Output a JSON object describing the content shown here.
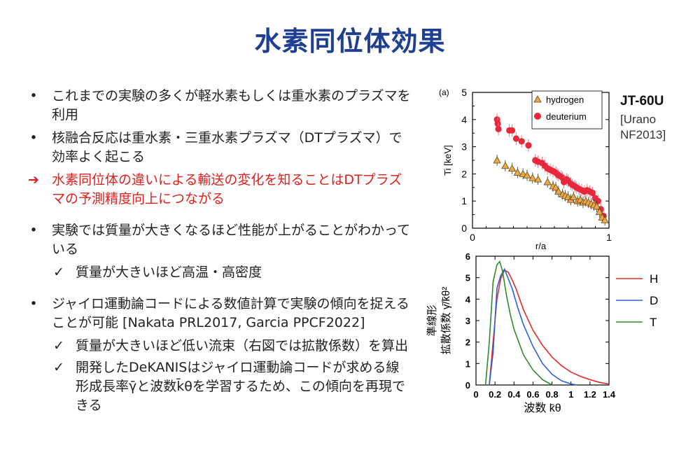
{
  "title": "水素同位体効果",
  "bullets": [
    {
      "marker": "•",
      "style": "normal",
      "text": "これまでの実験の多くが軽水素もしくは重水素のプラズマを利用",
      "subs": []
    },
    {
      "marker": "•",
      "style": "normal",
      "text": "核融合反応は重水素・三重水素プラズマ（DTプラズマ）で効率よく起こる",
      "subs": []
    },
    {
      "marker": "➔",
      "style": "red",
      "text": "水素同位体の違いによる輸送の変化を知ることはDTプラズマの予測精度向上につながる",
      "subs": []
    },
    {
      "marker": "•",
      "style": "gap",
      "text": "実験では質量が大きくなるほど性能が上がることがわかっている",
      "subs": [
        {
          "marker": "✓",
          "text": "質量が大きいほど高温・高密度"
        }
      ]
    },
    {
      "marker": "•",
      "style": "gap",
      "text": "ジャイロ運動論コードによる数値計算で実験の傾向を捉えることが可能 [Nakata PRL2017, Garcia PPCF2022]",
      "subs": [
        {
          "marker": "✓",
          "text": "質量が大きいほど低い流束（右図では拡散係数）を算出"
        },
        {
          "marker": "✓",
          "text": "開発したDeKANISはジャイロ運動論コードが求める線形成長率γ̄と波数k̄θを学習するため、この傾向を再現できる"
        }
      ]
    }
  ],
  "side": {
    "label": "JT-60U",
    "ref_line1": "[Urano",
    "ref_line2": "NF2013]"
  },
  "chart_data": [
    {
      "type": "scatter",
      "panel_label": "(a)",
      "xlabel": "r/a",
      "ylabel": "Ti [keV]",
      "xlim": [
        0,
        1
      ],
      "ylim": [
        0,
        5
      ],
      "xticks": [
        "0",
        "1"
      ],
      "yticks": [
        "0",
        "1",
        "2",
        "3",
        "4",
        "5"
      ],
      "legend_placement": "top-right",
      "series": [
        {
          "name": "hydrogen",
          "color": "#e8a94a",
          "marker": "triangle",
          "x": [
            0.18,
            0.24,
            0.29,
            0.33,
            0.37,
            0.4,
            0.44,
            0.48,
            0.55,
            0.59,
            0.61,
            0.63,
            0.66,
            0.68,
            0.7,
            0.72,
            0.74,
            0.77,
            0.79,
            0.81,
            0.83,
            0.85,
            0.87,
            0.89,
            0.91,
            0.93,
            0.95,
            0.97
          ],
          "y": [
            2.5,
            2.3,
            2.2,
            2.05,
            2.0,
            1.95,
            1.85,
            1.8,
            1.7,
            1.55,
            1.5,
            1.35,
            1.25,
            1.2,
            1.15,
            1.05,
            1.15,
            1.0,
            1.05,
            0.95,
            1.0,
            0.95,
            0.9,
            0.85,
            0.8,
            0.6,
            0.4,
            0.3
          ]
        },
        {
          "name": "deuterium",
          "color": "#e8283a",
          "marker": "circle",
          "x": [
            0.18,
            0.185,
            0.19,
            0.27,
            0.29,
            0.32,
            0.36,
            0.41,
            0.46,
            0.48,
            0.51,
            0.53,
            0.55,
            0.57,
            0.59,
            0.61,
            0.62,
            0.63,
            0.65,
            0.66,
            0.67,
            0.69,
            0.7,
            0.72,
            0.73,
            0.75,
            0.76,
            0.78,
            0.8,
            0.82,
            0.84,
            0.86,
            0.88,
            0.9,
            0.92,
            0.94,
            0.96
          ],
          "y": [
            4.0,
            3.85,
            3.65,
            3.6,
            3.6,
            3.3,
            3.2,
            3.05,
            2.5,
            2.45,
            2.4,
            2.3,
            2.2,
            2.15,
            2.1,
            2.05,
            2.0,
            1.95,
            1.9,
            1.85,
            1.7,
            1.8,
            1.75,
            1.65,
            1.6,
            1.55,
            1.5,
            1.45,
            1.4,
            1.35,
            1.4,
            1.35,
            1.3,
            1.1,
            1.0,
            0.7,
            0.45
          ]
        }
      ]
    },
    {
      "type": "line",
      "xlabel": "波数 k̄θ",
      "ylabel_line1": "準線形",
      "ylabel_line2": "拡散係数 γ̄/k̄θ²",
      "xlim": [
        0,
        1.4
      ],
      "ylim": [
        0,
        6
      ],
      "xticks": [
        "0",
        "0.2",
        "0.4",
        "0.6",
        "0.8",
        "1",
        "1.2",
        "1.4"
      ],
      "yticks": [
        "0",
        "1",
        "2",
        "3",
        "4",
        "5",
        "6"
      ],
      "legend_placement": "right",
      "series": [
        {
          "name": "H",
          "color": "#e8282a",
          "x": [
            0.14,
            0.18,
            0.22,
            0.26,
            0.3,
            0.34,
            0.38,
            0.42,
            0.5,
            0.6,
            0.7,
            0.8,
            0.9,
            1.0,
            1.1,
            1.2,
            1.3,
            1.4
          ],
          "y": [
            0,
            2.0,
            4.0,
            4.95,
            5.35,
            5.25,
            4.9,
            4.5,
            3.5,
            2.55,
            1.85,
            1.3,
            0.9,
            0.6,
            0.4,
            0.25,
            0.12,
            0.05
          ]
        },
        {
          "name": "D",
          "color": "#2a63d8",
          "x": [
            0.14,
            0.18,
            0.22,
            0.26,
            0.3,
            0.34,
            0.38,
            0.44,
            0.5,
            0.6,
            0.7,
            0.8,
            0.9,
            1.0,
            1.06
          ],
          "y": [
            0,
            1.5,
            4.5,
            5.1,
            5.4,
            4.95,
            4.5,
            3.6,
            2.8,
            1.8,
            1.0,
            0.5,
            0.2,
            0.05,
            0
          ]
        },
        {
          "name": "T",
          "color": "#2f8a2a",
          "x": [
            0.1,
            0.14,
            0.18,
            0.22,
            0.25,
            0.28,
            0.32,
            0.36,
            0.4,
            0.5,
            0.6,
            0.7,
            0.8
          ],
          "y": [
            0,
            2.0,
            4.8,
            5.6,
            5.75,
            5.3,
            4.2,
            3.3,
            2.6,
            1.4,
            0.7,
            0.25,
            0
          ]
        }
      ]
    }
  ]
}
